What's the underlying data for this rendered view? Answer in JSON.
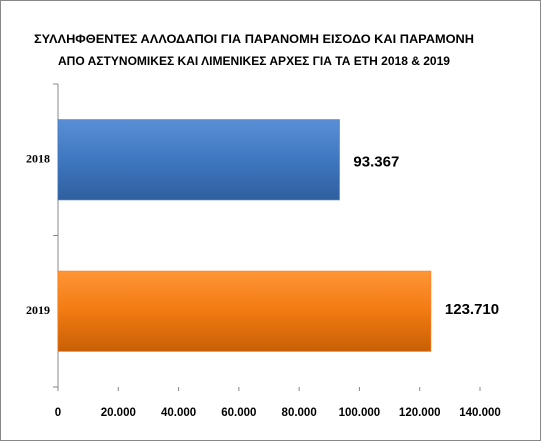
{
  "chart_data": {
    "type": "hbar",
    "title": [
      "ΣΥΛΛΗΦΘΕΝΤΕΣ ΑΛΛΟΔΑΠΟΙ ΓΙΑ ΠΑΡΑΝΟΜΗ ΕΙΣΟΔΟ ΚΑΙ ΠΑΡΑΜΟΝΗ",
      "ΑΠΟ ΑΣΤΥΝΟΜΙΚΕΣ ΚΑΙ ΛΙΜΕΝΙΚΕΣ ΑΡΧΕΣ  ΓΙΑ ΤΑ ΕΤΗ 2018 & 2019"
    ],
    "categories": [
      "2018",
      "2019"
    ],
    "values": [
      93367,
      123710
    ],
    "value_labels": [
      "93.367",
      "123.710"
    ],
    "colors": [
      "#3f77c0",
      "#f27a12"
    ],
    "xlim": [
      0,
      140000
    ],
    "xticks": [
      0,
      {
        "value": 20000,
        "label": "20.000"
      },
      {
        "value": 40000,
        "label": "40.000"
      },
      {
        "value": 60000,
        "label": "60.000"
      },
      {
        "value": 80000,
        "label": "80.000"
      },
      {
        "value": 100000,
        "label": "100.000"
      },
      {
        "value": 120000,
        "label": "120.000"
      },
      {
        "value": 140000,
        "label": "140.000"
      }
    ],
    "grid": false
  }
}
